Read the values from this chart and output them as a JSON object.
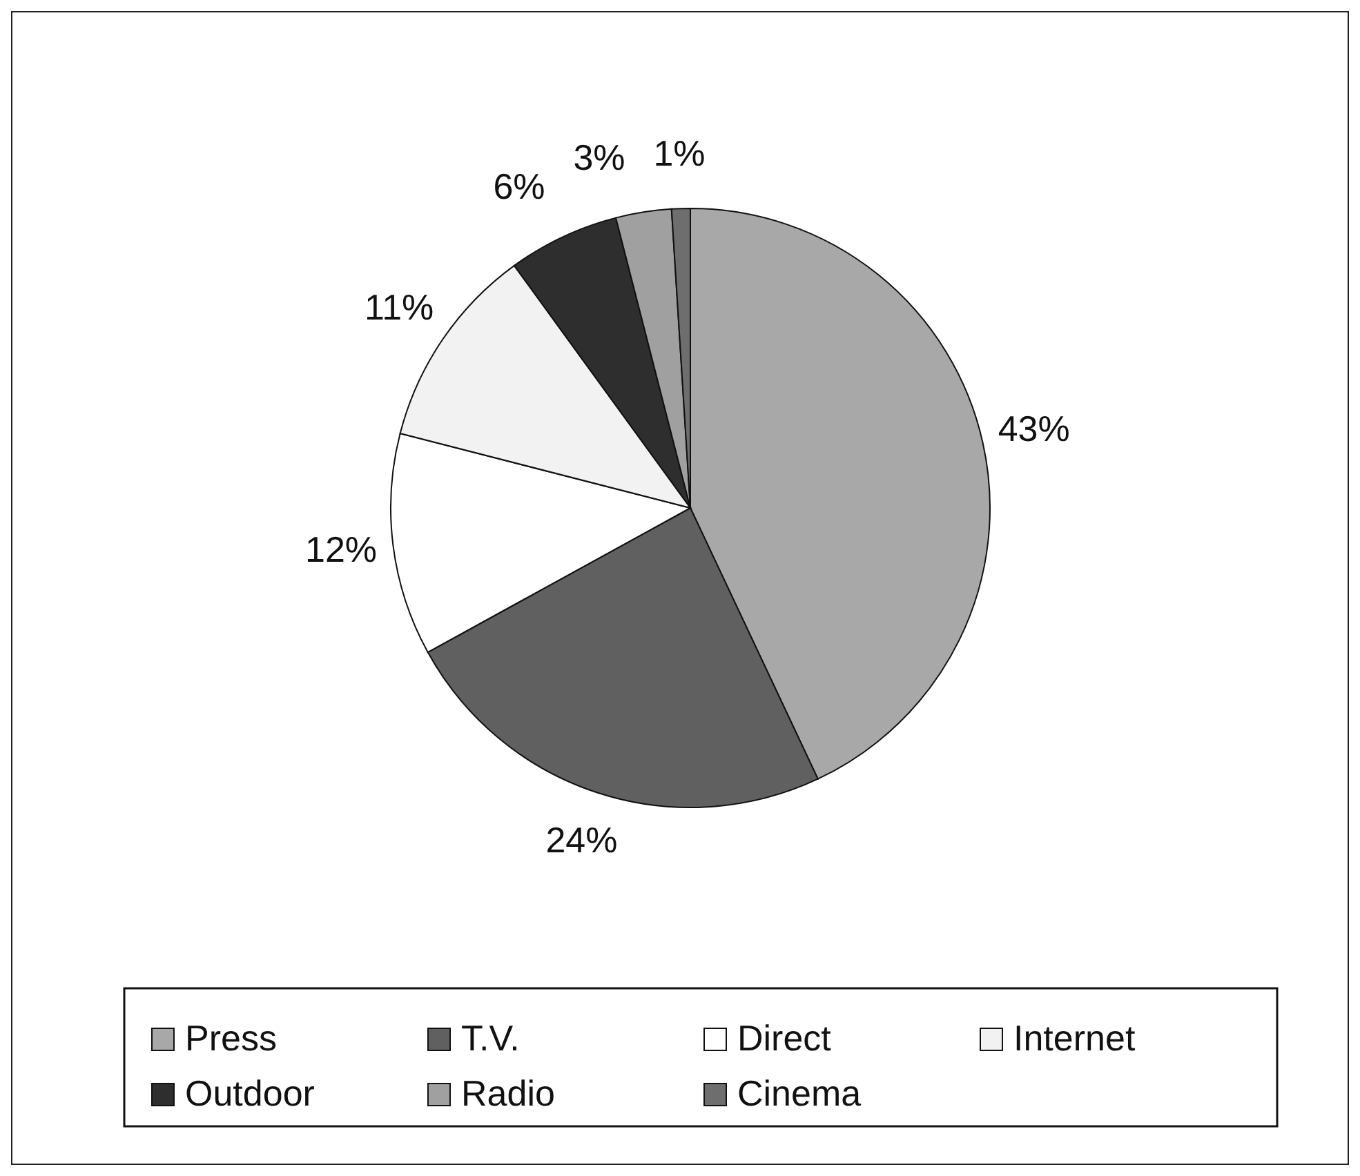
{
  "chart_data": {
    "type": "pie",
    "categories": [
      "Press",
      "T.V.",
      "Direct",
      "Internet",
      "Outdoor",
      "Radio",
      "Cinema"
    ],
    "values": [
      43,
      24,
      12,
      11,
      6,
      3,
      1
    ],
    "value_labels": [
      "43%",
      "24%",
      "12%",
      "11%",
      "6%",
      "3%",
      "1%"
    ],
    "colors": [
      "#a8a8a8",
      "#606060",
      "#ffffff",
      "#f2f2f2",
      "#2e2e2e",
      "#a0a0a0",
      "#6e6e6e"
    ],
    "legend": "bottom"
  }
}
